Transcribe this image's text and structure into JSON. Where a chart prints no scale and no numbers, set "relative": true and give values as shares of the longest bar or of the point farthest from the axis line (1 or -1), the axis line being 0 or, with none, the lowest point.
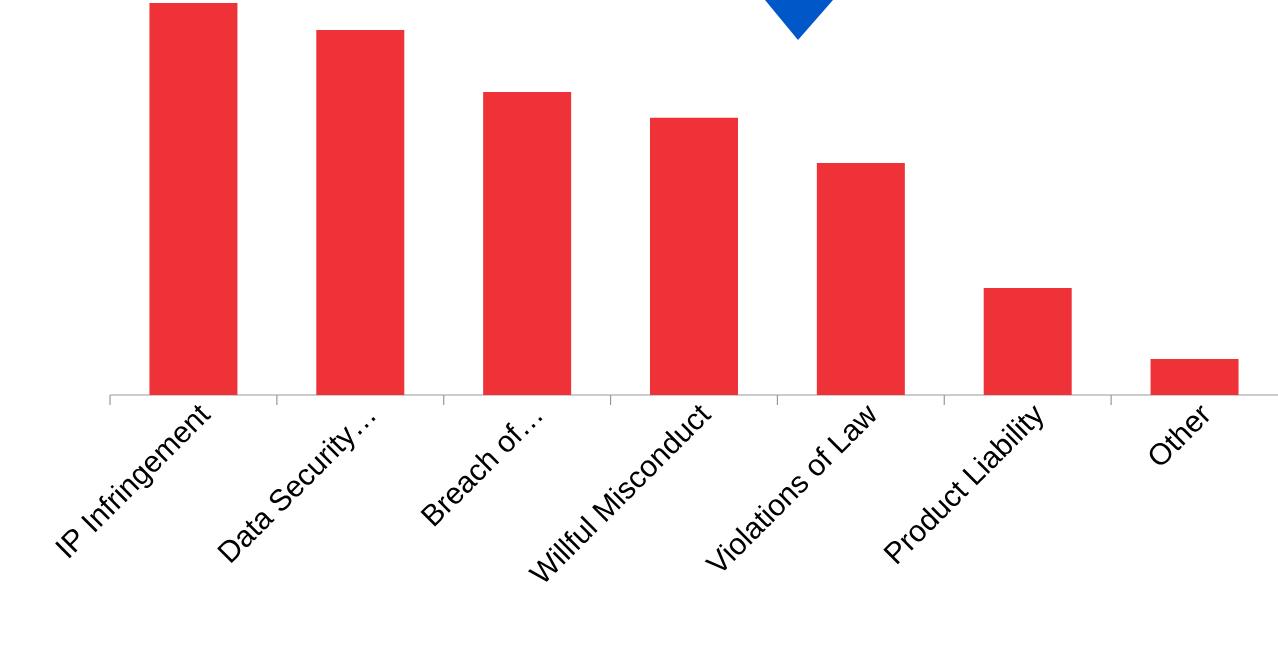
{
  "chart_data": {
    "type": "bar",
    "relative": true,
    "categories": [
      "IP Infringement",
      "Data Security…",
      "Breach of…",
      "Willful Misconduct",
      "Violations of Law",
      "Product Liability",
      "Other"
    ],
    "values": [
      1,
      0.931,
      0.773,
      0.707,
      0.592,
      0.273,
      0.092
    ],
    "color": "#ee3237"
  }
}
